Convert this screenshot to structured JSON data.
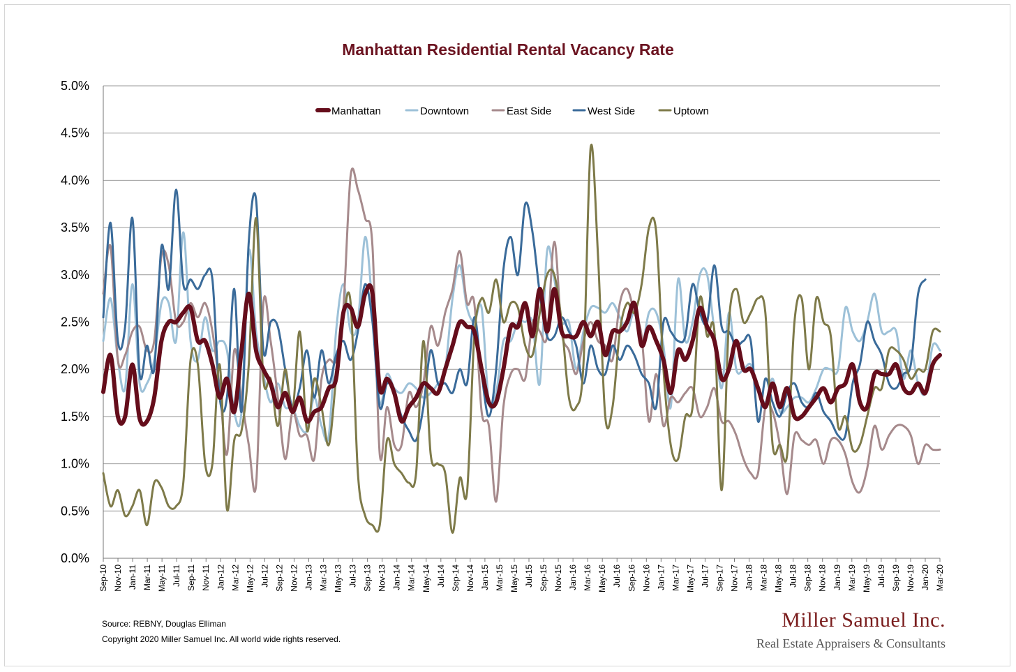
{
  "chart_data": {
    "type": "line",
    "title": "Manhattan Residential Rental Vacancy Rate",
    "xlabel": "",
    "ylabel": "",
    "ylim": [
      0,
      5
    ],
    "y_ticks": [
      "0.0%",
      "0.5%",
      "1.0%",
      "1.5%",
      "2.0%",
      "2.5%",
      "3.0%",
      "3.5%",
      "4.0%",
      "4.5%",
      "5.0%"
    ],
    "grid": true,
    "legend_position": "top-center",
    "x_tick_labels": [
      "Sep-10",
      "Nov-10",
      "Jan-11",
      "Mar-11",
      "May-11",
      "Jul-11",
      "Sep-11",
      "Nov-11",
      "Jan-12",
      "Mar-12",
      "May-12",
      "Jul-12",
      "Sep-12",
      "Nov-12",
      "Jan-13",
      "Mar-13",
      "May-13",
      "Jul-13",
      "Sep-13",
      "Nov-13",
      "Jan-14",
      "Mar-14",
      "May-14",
      "Jul-14",
      "Sep-14",
      "Nov-14",
      "Jan-15",
      "Mar-15",
      "May-15",
      "Jul-15",
      "Sep-15",
      "Nov-15",
      "Jan-16",
      "Mar-16",
      "May-16",
      "Jul-16",
      "Sep-16",
      "Nov-16",
      "Jan-17",
      "Mar-17",
      "May-17",
      "Jul-17",
      "Sep-17",
      "Nov-17",
      "Jan-18",
      "Mar-18",
      "May-18",
      "Jul-18",
      "Sep-18",
      "Nov-18",
      "Jan-19",
      "Mar-19",
      "May-19",
      "Jul-19",
      "Sep-19",
      "Nov-19",
      "Jan-20",
      "Mar-20"
    ],
    "series": [
      {
        "name": "Manhattan",
        "color": "#650d1b",
        "width": 6,
        "values": [
          1.76,
          2.15,
          1.5,
          1.5,
          2.05,
          1.48,
          1.45,
          1.7,
          2.3,
          2.5,
          2.5,
          2.6,
          2.65,
          2.3,
          2.3,
          2.05,
          1.7,
          1.9,
          1.55,
          2.2,
          2.8,
          2.2,
          2.0,
          1.85,
          1.6,
          1.75,
          1.55,
          1.7,
          1.45,
          1.55,
          1.6,
          1.8,
          1.9,
          2.6,
          2.65,
          2.45,
          2.8,
          2.8,
          1.8,
          1.9,
          1.75,
          1.45,
          1.6,
          1.7,
          1.85,
          1.8,
          1.75,
          2.0,
          2.25,
          2.5,
          2.45,
          2.4,
          2.0,
          1.65,
          1.65,
          2.0,
          2.45,
          2.45,
          2.7,
          2.35,
          2.85,
          2.4,
          2.85,
          2.4,
          2.35,
          2.35,
          2.5,
          2.35,
          2.5,
          2.15,
          2.4,
          2.4,
          2.5,
          2.7,
          2.25,
          2.45,
          2.3,
          2.1,
          1.75,
          2.2,
          2.1,
          2.3,
          2.65,
          2.45,
          2.3,
          1.9,
          2.0,
          2.3,
          2.0,
          2.0,
          1.8,
          1.6,
          1.85,
          1.6,
          1.8,
          1.5,
          1.5,
          1.6,
          1.7,
          1.8,
          1.65,
          1.8,
          1.85,
          2.05,
          1.65,
          1.6,
          1.95,
          1.95,
          1.95,
          2.05,
          1.8,
          1.75,
          1.85,
          1.75,
          2.05,
          2.15
        ]
      },
      {
        "name": "Downtown",
        "color": "#9dc1d8",
        "width": 3,
        "values": [
          2.3,
          2.75,
          2.1,
          1.8,
          2.9,
          1.85,
          1.85,
          2.1,
          2.7,
          2.7,
          2.3,
          3.45,
          2.3,
          2.1,
          2.55,
          2.2,
          2.3,
          2.2,
          1.55,
          1.55,
          3.25,
          2.4,
          1.95,
          1.65,
          1.85,
          1.6,
          1.6,
          1.4,
          1.35,
          1.7,
          1.4,
          1.3,
          2.4,
          2.9,
          2.4,
          2.5,
          3.4,
          2.65,
          1.65,
          1.95,
          1.8,
          1.75,
          1.85,
          1.8,
          1.7,
          1.75,
          1.85,
          2.0,
          2.75,
          3.1,
          2.65,
          2.5,
          2.65,
          1.65,
          1.75,
          2.3,
          2.3,
          2.5,
          2.5,
          2.5,
          1.85,
          3.25,
          2.95,
          2.5,
          2.5,
          2.0,
          2.4,
          2.65,
          2.65,
          2.6,
          2.7,
          2.55,
          2.4,
          2.6,
          2.25,
          2.6,
          2.6,
          2.25,
          1.6,
          2.95,
          2.3,
          2.5,
          3.0,
          3.0,
          2.4,
          1.8,
          2.6,
          2.0,
          2.0,
          2.05,
          1.8,
          1.65,
          1.9,
          1.55,
          1.6,
          1.7,
          1.7,
          1.65,
          1.8,
          2.0,
          2.0,
          2.0,
          2.65,
          2.4,
          2.3,
          2.5,
          2.8,
          2.4,
          2.4,
          2.4,
          1.9,
          2.2,
          1.85,
          1.75,
          2.25,
          2.2
        ]
      },
      {
        "name": "East Side",
        "color": "#a68a8c",
        "width": 3,
        "values": [
          2.8,
          3.3,
          2.1,
          2.15,
          2.4,
          2.45,
          2.2,
          2.3,
          3.2,
          3.1,
          2.5,
          2.5,
          2.7,
          2.55,
          2.7,
          2.4,
          1.8,
          1.1,
          2.2,
          1.7,
          1.2,
          0.77,
          2.7,
          2.3,
          1.7,
          1.05,
          1.55,
          1.3,
          1.3,
          1.05,
          1.9,
          2.1,
          2.1,
          2.65,
          4.05,
          3.9,
          3.6,
          3.3,
          1.1,
          1.6,
          1.2,
          1.2,
          1.75,
          1.6,
          1.85,
          2.45,
          2.25,
          2.6,
          2.85,
          3.25,
          2.7,
          2.7,
          1.55,
          1.4,
          0.6,
          1.6,
          1.95,
          2.0,
          1.9,
          2.5,
          2.4,
          2.35,
          3.35,
          2.4,
          2.2,
          1.95,
          2.3,
          2.5,
          2.3,
          2.25,
          2.1,
          2.7,
          2.85,
          2.6,
          2.35,
          1.45,
          1.95,
          1.4,
          1.7,
          1.65,
          1.75,
          1.8,
          1.5,
          1.6,
          1.8,
          1.45,
          1.45,
          1.3,
          1.05,
          0.9,
          0.9,
          1.6,
          1.55,
          1.2,
          0.68,
          1.3,
          1.25,
          1.2,
          1.25,
          1.0,
          1.25,
          1.25,
          1.1,
          0.8,
          0.7,
          0.95,
          1.4,
          1.15,
          1.3,
          1.4,
          1.4,
          1.3,
          1.0,
          1.2,
          1.15,
          1.15
        ]
      },
      {
        "name": "West Side",
        "color": "#3a6b9a",
        "width": 3,
        "values": [
          2.55,
          3.55,
          2.3,
          2.45,
          3.6,
          1.95,
          2.25,
          2.0,
          3.3,
          2.85,
          3.9,
          2.9,
          2.95,
          2.85,
          3.0,
          2.95,
          1.7,
          1.7,
          2.85,
          1.55,
          3.35,
          3.8,
          2.2,
          2.5,
          2.45,
          2.0,
          1.6,
          1.8,
          2.2,
          1.7,
          2.2,
          1.85,
          2.15,
          2.3,
          2.1,
          2.4,
          2.9,
          2.5,
          1.6,
          1.85,
          1.75,
          1.5,
          1.35,
          1.25,
          1.6,
          2.2,
          1.85,
          1.85,
          1.75,
          2.0,
          1.85,
          2.55,
          1.95,
          1.5,
          2.0,
          3.05,
          3.4,
          3.0,
          3.75,
          3.45,
          2.8,
          2.35,
          2.35,
          2.55,
          2.4,
          2.25,
          1.85,
          2.25,
          2.0,
          1.95,
          2.25,
          2.1,
          2.25,
          2.15,
          1.95,
          1.85,
          1.6,
          2.5,
          2.4,
          2.3,
          2.35,
          2.9,
          2.6,
          2.5,
          3.1,
          2.45,
          2.4,
          2.25,
          2.3,
          2.3,
          1.45,
          1.9,
          1.65,
          1.5,
          1.75,
          1.85,
          1.65,
          1.6,
          1.75,
          1.55,
          1.45,
          1.3,
          1.3,
          1.85,
          2.05,
          2.5,
          2.3,
          2.15,
          1.85,
          1.8,
          1.95,
          2.05,
          2.8,
          2.95
        ]
      },
      {
        "name": "Uptown",
        "color": "#7e7a49",
        "width": 3,
        "values": [
          0.9,
          0.55,
          0.72,
          0.45,
          0.55,
          0.72,
          0.35,
          0.8,
          0.75,
          0.55,
          0.55,
          0.8,
          2.1,
          2.05,
          1.0,
          1.0,
          2.05,
          0.52,
          1.25,
          1.35,
          2.05,
          3.6,
          1.9,
          1.9,
          1.4,
          2.0,
          1.55,
          2.4,
          1.35,
          1.9,
          1.6,
          1.2,
          1.9,
          2.55,
          2.7,
          0.9,
          0.45,
          0.35,
          0.35,
          1.25,
          1.0,
          0.9,
          0.8,
          0.9,
          2.3,
          1.1,
          1.0,
          0.9,
          0.27,
          0.85,
          0.7,
          2.35,
          2.75,
          2.6,
          2.95,
          2.5,
          2.7,
          2.65,
          2.25,
          2.15,
          2.6,
          3.0,
          3.0,
          2.5,
          1.7,
          1.6,
          2.05,
          4.35,
          3.2,
          1.5,
          1.6,
          2.4,
          2.7,
          2.6,
          2.9,
          3.5,
          3.45,
          2.0,
          1.2,
          1.05,
          1.5,
          1.6,
          2.75,
          2.35,
          2.4,
          0.72,
          2.5,
          2.85,
          2.5,
          2.6,
          2.75,
          2.6,
          1.2,
          1.2,
          1.1,
          2.5,
          2.75,
          2.0,
          2.75,
          2.5,
          2.35,
          1.4,
          1.5,
          1.15,
          1.2,
          1.5,
          1.8,
          1.8,
          2.2,
          2.2,
          2.1,
          1.9,
          2.0,
          2.0,
          2.4,
          2.4
        ]
      }
    ]
  },
  "footer": {
    "source": "Source: REBNY, Douglas Elliman",
    "copyright": "Copyright 2020 Miller Samuel Inc.  All world wide rights reserved."
  },
  "logo": {
    "name": "Miller Samuel Inc.",
    "tagline": "Real Estate Appraisers & Consultants"
  }
}
